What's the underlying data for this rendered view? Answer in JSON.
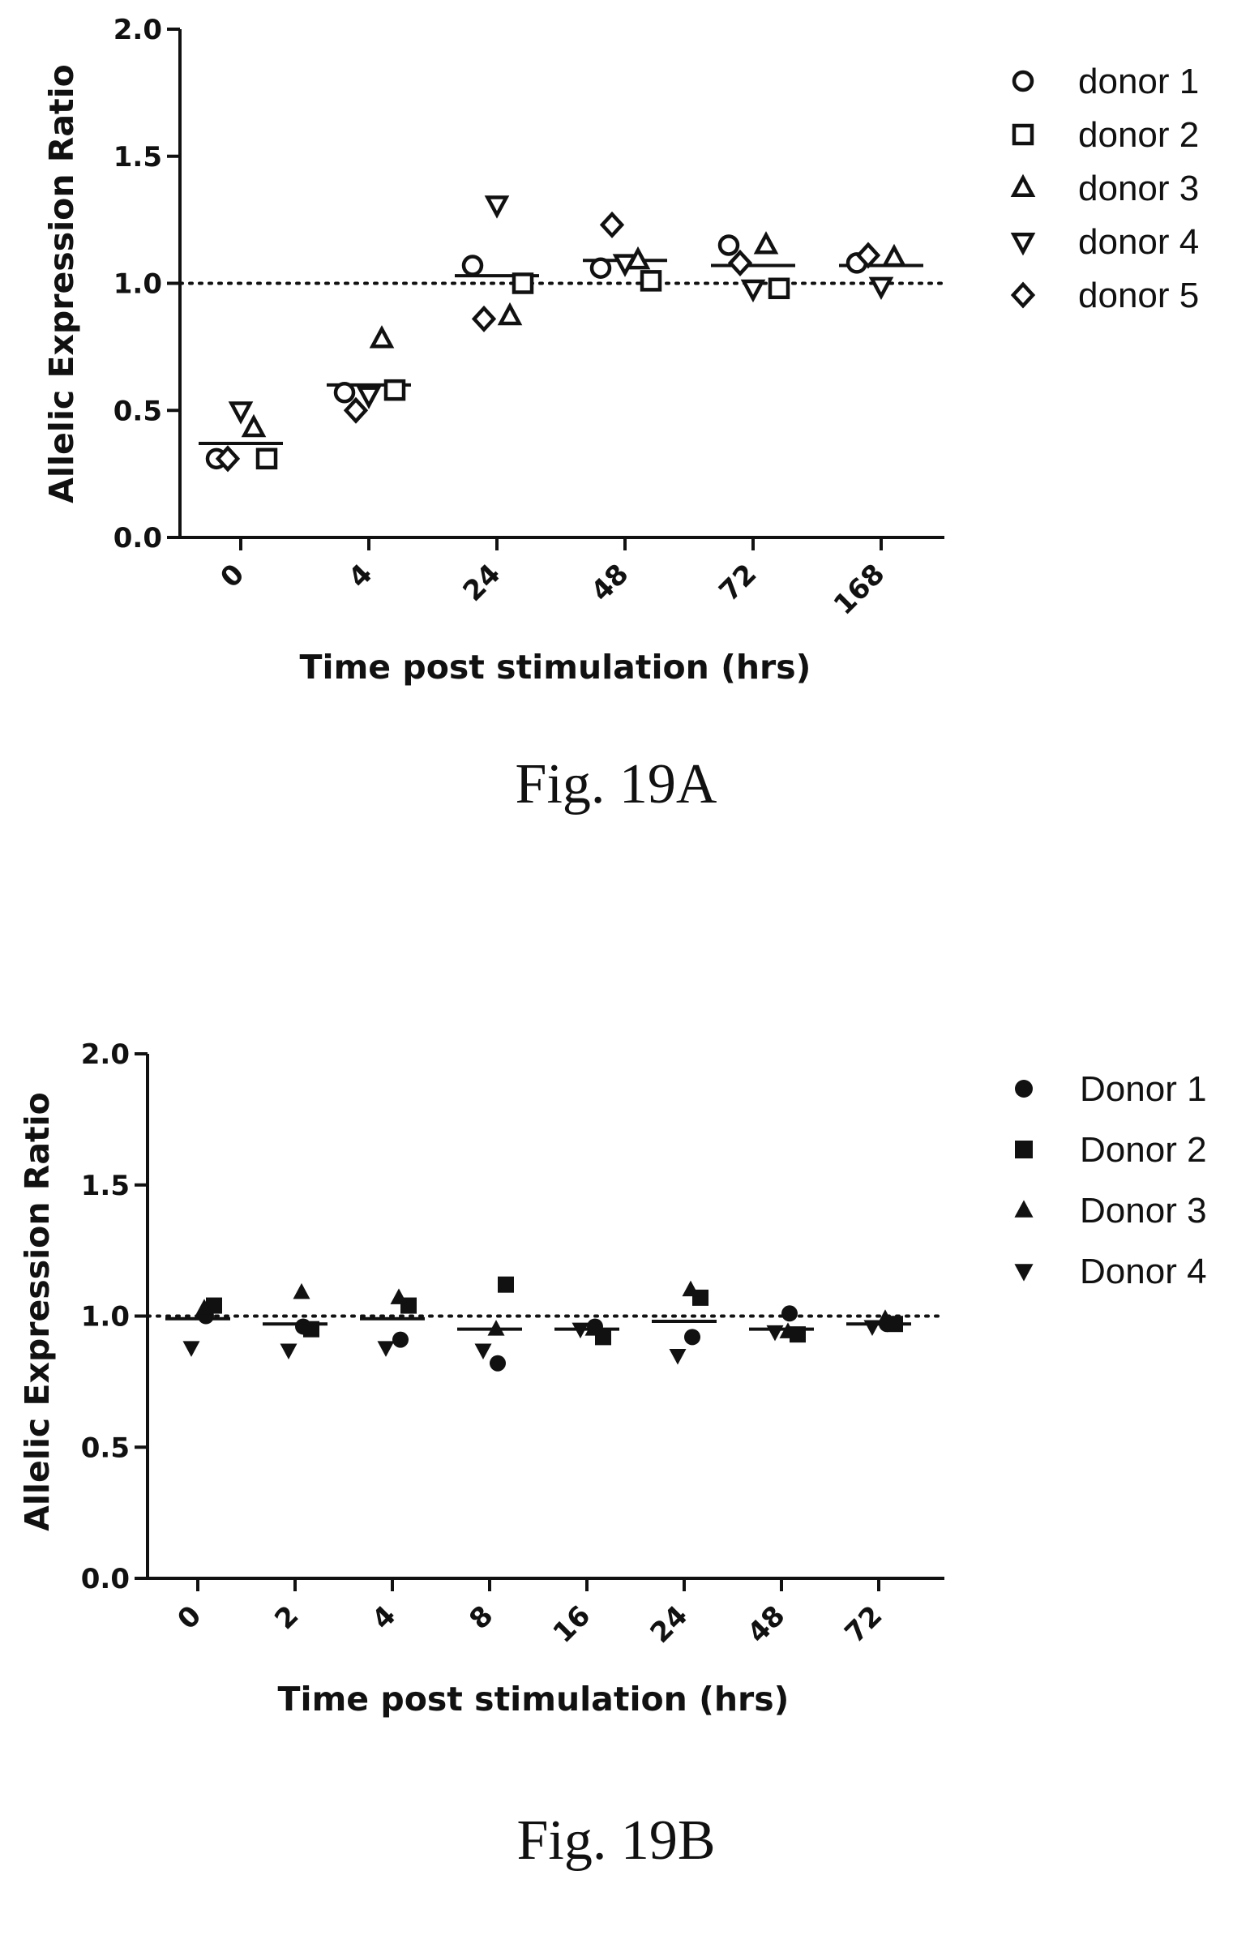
{
  "chart_data": [
    {
      "id": "A",
      "type": "scatter",
      "caption": "Fig. 19A",
      "xlabel": "Time post stimulation  (hrs)",
      "ylabel": "Allelic Expression Ratio",
      "ylim": [
        0.0,
        2.0
      ],
      "yticks": [
        "0.0",
        "0.5",
        "1.0",
        "1.5",
        "2.0"
      ],
      "categories": [
        "0",
        "4",
        "24",
        "48",
        "72",
        "168"
      ],
      "reference_line": 1.0,
      "filled_markers": false,
      "series": [
        {
          "name": "donor 1",
          "marker": "circle",
          "values": [
            0.31,
            0.57,
            1.07,
            1.06,
            1.15,
            1.08
          ]
        },
        {
          "name": "donor 2",
          "marker": "square",
          "values": [
            0.31,
            0.58,
            1.0,
            1.01,
            0.98,
            null
          ]
        },
        {
          "name": "donor 3",
          "marker": "triangle-up",
          "values": [
            0.43,
            0.78,
            0.87,
            1.09,
            1.15,
            1.1
          ]
        },
        {
          "name": "donor 4",
          "marker": "triangle-down",
          "values": [
            0.5,
            0.56,
            1.31,
            1.08,
            0.98,
            0.99
          ]
        },
        {
          "name": "donor 5",
          "marker": "diamond",
          "values": [
            0.31,
            0.5,
            0.86,
            1.23,
            1.08,
            1.11
          ]
        }
      ],
      "means": [
        0.37,
        0.6,
        1.03,
        1.09,
        1.07,
        1.07
      ]
    },
    {
      "id": "B",
      "type": "scatter",
      "caption": "Fig. 19B",
      "xlabel": "Time post stimulation (hrs)",
      "ylabel": "Allelic Expression Ratio",
      "ylim": [
        0.0,
        2.0
      ],
      "yticks": [
        "0.0",
        "0.5",
        "1.0",
        "1.5",
        "2.0"
      ],
      "categories": [
        "0",
        "2",
        "4",
        "8",
        "16",
        "24",
        "48",
        "72"
      ],
      "reference_line": 1.0,
      "filled_markers": true,
      "series": [
        {
          "name": "Donor 1",
          "marker": "circle",
          "values": [
            1.0,
            0.96,
            0.91,
            0.82,
            0.96,
            0.92,
            1.01,
            0.97
          ]
        },
        {
          "name": "Donor 2",
          "marker": "square",
          "values": [
            1.04,
            0.95,
            1.04,
            1.12,
            0.92,
            1.07,
            0.93,
            0.97
          ]
        },
        {
          "name": "Donor 3",
          "marker": "triangle-up",
          "values": [
            1.03,
            1.09,
            1.07,
            0.95,
            0.95,
            1.1,
            0.94,
            0.99
          ]
        },
        {
          "name": "Donor 4",
          "marker": "triangle-down",
          "values": [
            0.88,
            0.87,
            0.88,
            0.87,
            0.95,
            0.85,
            0.94,
            0.96
          ]
        }
      ],
      "means": [
        0.99,
        0.97,
        0.99,
        0.95,
        0.95,
        0.98,
        0.95,
        0.97
      ]
    }
  ]
}
